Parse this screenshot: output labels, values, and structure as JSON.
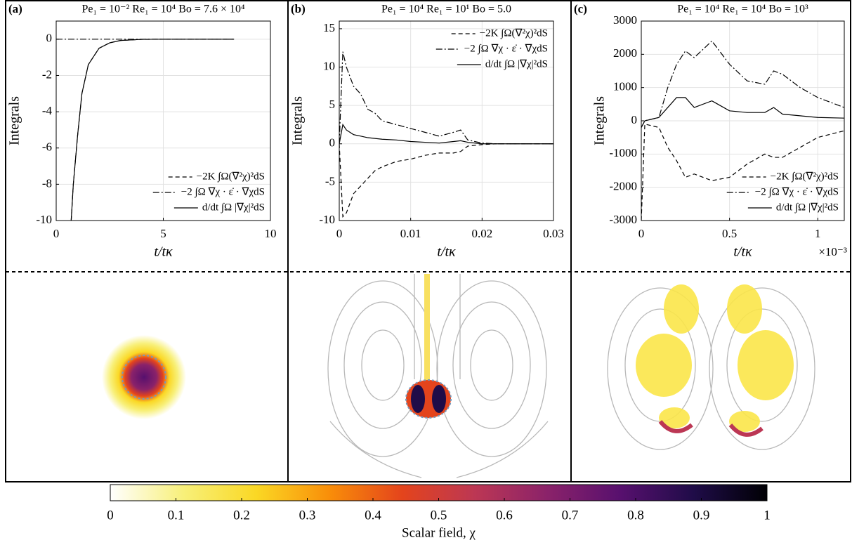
{
  "chart_data": [
    {
      "type": "line",
      "panel_label": "(a)",
      "title": "Pe₁ = 10⁻² Re₁ = 10⁴ Bo = 7.6 × 10⁴",
      "xlabel": "t/tκ",
      "ylabel": "Integrals",
      "x": [
        0,
        0.7,
        0.8,
        1,
        1.2,
        1.5,
        2,
        2.5,
        3,
        4,
        5,
        6,
        7,
        8.3
      ],
      "xlim": [
        0,
        10
      ],
      "xticks": [
        0,
        5,
        10
      ],
      "ylim": [
        -10,
        1
      ],
      "yticks": [
        -10,
        -8,
        -6,
        -4,
        -2,
        0
      ],
      "grid": true,
      "legend": "lower right",
      "series": [
        {
          "name": "−2K ∫Ω(∇²χ)²dS",
          "color": "#000000",
          "dash": "dashed",
          "values": [
            null,
            -10,
            -8,
            -5.3,
            -3,
            -1.4,
            -0.5,
            -0.2,
            -0.07,
            -0.01,
            0,
            0,
            0,
            0
          ]
        },
        {
          "name": "−2 ∫Ω ∇χ · ε̇ · ∇χdS",
          "color": "#000000",
          "dash": "dashdot",
          "values": [
            0,
            0,
            0,
            0,
            0,
            0,
            0,
            0,
            0,
            0,
            0,
            0,
            0,
            0
          ]
        },
        {
          "name": "d/dt ∫Ω |∇χ|²dS",
          "color": "#000000",
          "dash": "solid",
          "values": [
            null,
            -10,
            -8,
            -5.3,
            -3,
            -1.4,
            -0.5,
            -0.2,
            -0.07,
            -0.01,
            0,
            0,
            0,
            0
          ]
        }
      ]
    },
    {
      "type": "line",
      "panel_label": "(b)",
      "title": "Pe₁ = 10⁴ Re₁ = 10¹ Bo = 5.0",
      "xlabel": "t/tκ",
      "ylabel": "Integrals",
      "x": [
        0,
        0.0005,
        0.001,
        0.002,
        0.003,
        0.004,
        0.005,
        0.006,
        0.008,
        0.01,
        0.012,
        0.014,
        0.016,
        0.017,
        0.018,
        0.02,
        0.022,
        0.025,
        0.03
      ],
      "xlim": [
        0,
        0.03
      ],
      "xticks": [
        0,
        0.01,
        0.02,
        0.03
      ],
      "ylim": [
        -10,
        16
      ],
      "yticks": [
        -10,
        -5,
        0,
        5,
        10,
        15
      ],
      "grid": true,
      "legend": "upper right",
      "series": [
        {
          "name": "−2K ∫Ω(∇²χ)²dS",
          "color": "#000000",
          "dash": "dashed",
          "values": [
            0,
            -9.5,
            -9,
            -6.5,
            -5.5,
            -4.5,
            -3.5,
            -3,
            -2.3,
            -2,
            -1.5,
            -1.2,
            -1.2,
            -1,
            -0.3,
            -0.1,
            0,
            0,
            0
          ]
        },
        {
          "name": "−2 ∫Ω ∇χ · ε̇ · ∇χdS",
          "color": "#000000",
          "dash": "dashdot",
          "values": [
            0,
            12,
            10,
            7.5,
            6.5,
            4.5,
            4,
            3,
            2.5,
            2,
            1.5,
            1,
            1.5,
            1.8,
            0.5,
            0.1,
            0,
            0,
            0
          ]
        },
        {
          "name": "d/dt ∫Ω |∇χ|²dS",
          "color": "#000000",
          "dash": "solid",
          "values": [
            0,
            2.5,
            1.8,
            1.2,
            1,
            0.8,
            0.7,
            0.6,
            0.5,
            0.3,
            0.2,
            0.1,
            0.3,
            0.4,
            0.2,
            0,
            0,
            0,
            0
          ]
        }
      ]
    },
    {
      "type": "line",
      "panel_label": "(c)",
      "title": "Pe₁ = 10⁴ Re₁ = 10⁴ Bo = 10³",
      "xlabel": "t/tκ",
      "ylabel": "Integrals",
      "x_multiplier": "×10⁻³",
      "x": [
        0,
        2e-05,
        0.0001,
        0.00015,
        0.0002,
        0.00025,
        0.0003,
        0.0004,
        0.0005,
        0.0006,
        0.0007,
        0.00075,
        0.0008,
        0.0009,
        0.001,
        0.00115
      ],
      "xlim": [
        0,
        0.00115
      ],
      "xticks": [
        0,
        {
          "value": 0.0005,
          "label": "0.5"
        },
        {
          "value": 0.001,
          "label": "1"
        }
      ],
      "ylim": [
        -3000,
        3000
      ],
      "yticks": [
        -3000,
        -2000,
        -1000,
        0,
        1000,
        2000,
        3000
      ],
      "grid": true,
      "legend": "lower right",
      "series": [
        {
          "name": "−2K ∫Ω(∇²χ)²dS",
          "color": "#000000",
          "dash": "dashed",
          "values": [
            -3000,
            -100,
            -200,
            -800,
            -1200,
            -1700,
            -1600,
            -1800,
            -1700,
            -1300,
            -1000,
            -1100,
            -1100,
            -800,
            -500,
            -300
          ]
        },
        {
          "name": "−2 ∫Ω ∇χ · ε̇ · ∇χdS",
          "color": "#000000",
          "dash": "dashdot",
          "values": [
            -200,
            0,
            100,
            1000,
            1700,
            2100,
            1900,
            2400,
            1700,
            1200,
            1100,
            1500,
            1400,
            1000,
            700,
            400
          ]
        },
        {
          "name": "d/dt ∫Ω |∇χ|²dS",
          "color": "#000000",
          "dash": "solid",
          "values": [
            -200,
            0,
            100,
            400,
            700,
            700,
            400,
            600,
            300,
            250,
            250,
            400,
            200,
            150,
            100,
            80
          ]
        }
      ]
    },
    {
      "type": "colorbar",
      "xlabel": "Scalar field, χ",
      "xlim": [
        0,
        1
      ],
      "xticks": [
        0,
        0.1,
        0.2,
        0.3,
        0.4,
        0.5,
        0.6,
        0.7,
        0.8,
        0.9,
        1
      ],
      "colormap": [
        "#ffffff",
        "#f8f07a",
        "#fad824",
        "#f98e09",
        "#e4441c",
        "#bc3754",
        "#8a226a",
        "#57106e",
        "#1f0c48",
        "#000004"
      ]
    }
  ]
}
